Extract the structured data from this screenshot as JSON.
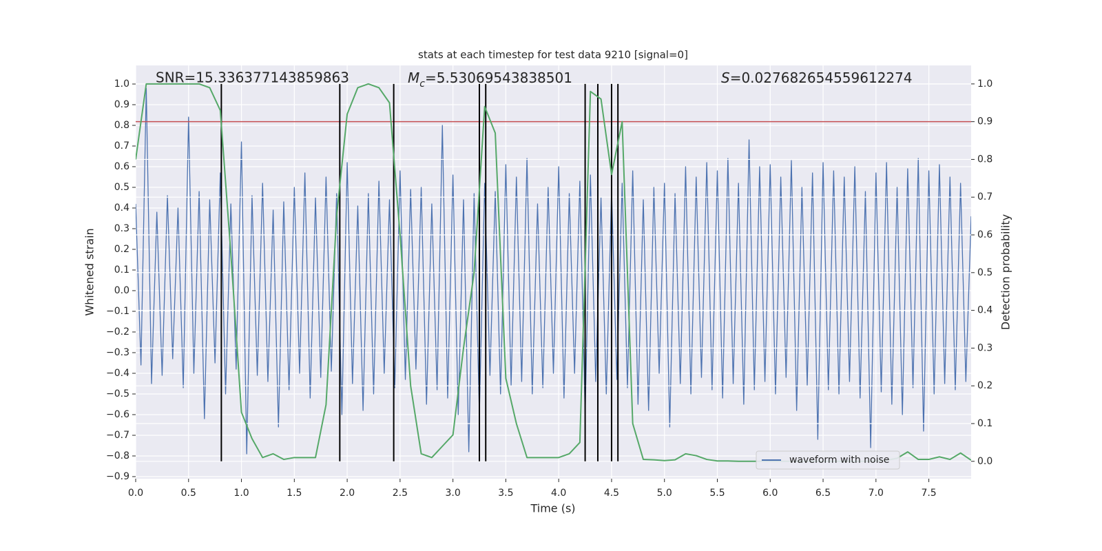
{
  "chart_data": {
    "type": "line",
    "title": "stats at each timestep for test data 9210 [signal=0]",
    "xlabel": "Time (s)",
    "ylabel": "Whitened strain",
    "y2label": "Detection probability",
    "xlim": [
      0,
      7.9
    ],
    "ylim": [
      -0.91,
      1.09
    ],
    "y2lim": [
      -0.046,
      1.049
    ],
    "xticks": [
      {
        "value": 0,
        "label": "0.0"
      },
      0.5,
      {
        "value": 1,
        "label": "1.0"
      },
      1.5,
      {
        "value": 2,
        "label": "2.0"
      },
      2.5,
      {
        "value": 3,
        "label": "3.0"
      },
      3.5,
      {
        "value": 4,
        "label": "4.0"
      },
      4.5,
      {
        "value": 5,
        "label": "5.0"
      },
      5.5,
      {
        "value": 6,
        "label": "6.0"
      },
      6.5,
      {
        "value": 7,
        "label": "7.0"
      },
      7.5
    ],
    "yticks": [
      {
        "value": -0.9,
        "label": "−0.9"
      },
      {
        "value": -0.8,
        "label": "−0.8"
      },
      {
        "value": -0.7,
        "label": "−0.7"
      },
      {
        "value": -0.6,
        "label": "−0.6"
      },
      {
        "value": -0.5,
        "label": "−0.5"
      },
      {
        "value": -0.4,
        "label": "−0.4"
      },
      {
        "value": -0.3,
        "label": "−0.3"
      },
      {
        "value": -0.2,
        "label": "−0.2"
      },
      {
        "value": -0.1,
        "label": "−0.1"
      },
      {
        "value": 0,
        "label": "0.0"
      },
      0.1,
      0.2,
      0.3,
      0.4,
      0.5,
      0.6,
      0.7,
      0.8,
      0.9,
      {
        "value": 1,
        "label": "1.0"
      }
    ],
    "y2ticks": [
      {
        "value": 0,
        "label": "0.0"
      },
      0.1,
      0.2,
      0.3,
      0.4,
      0.5,
      0.6,
      0.7,
      0.8,
      0.9,
      {
        "value": 1,
        "label": "1.0"
      }
    ],
    "grid": true,
    "legend": "best",
    "series": [
      {
        "name": "waveform with noise",
        "color": "#4c72b0",
        "x": [
          0,
          0.05,
          0.1,
          0.15,
          0.2,
          0.25,
          0.3,
          0.35,
          0.4,
          0.45,
          0.5,
          0.55,
          0.6,
          0.65,
          0.7,
          0.75,
          0.8,
          0.85,
          0.9,
          0.95,
          1,
          1.05,
          1.1,
          1.15,
          1.2,
          1.25,
          1.3,
          1.35,
          1.4,
          1.45,
          1.5,
          1.55,
          1.6,
          1.65,
          1.7,
          1.75,
          1.8,
          1.85,
          1.9,
          1.95,
          2,
          2.05,
          2.1,
          2.15,
          2.2,
          2.25,
          2.3,
          2.35,
          2.4,
          2.45,
          2.5,
          2.55,
          2.6,
          2.65,
          2.7,
          2.75,
          2.8,
          2.85,
          2.9,
          2.95,
          3,
          3.05,
          3.1,
          3.15,
          3.2,
          3.25,
          3.3,
          3.35,
          3.4,
          3.45,
          3.5,
          3.55,
          3.6,
          3.65,
          3.7,
          3.75,
          3.8,
          3.85,
          3.9,
          3.95,
          4,
          4.05,
          4.1,
          4.15,
          4.2,
          4.25,
          4.3,
          4.35,
          4.4,
          4.45,
          4.5,
          4.55,
          4.6,
          4.65,
          4.7,
          4.75,
          4.8,
          4.85,
          4.9,
          4.95,
          5,
          5.05,
          5.1,
          5.15,
          5.2,
          5.25,
          5.3,
          5.35,
          5.4,
          5.45,
          5.5,
          5.55,
          5.6,
          5.65,
          5.7,
          5.75,
          5.8,
          5.85,
          5.9,
          5.95,
          6,
          6.05,
          6.1,
          6.15,
          6.2,
          6.25,
          6.3,
          6.35,
          6.4,
          6.45,
          6.5,
          6.55,
          6.6,
          6.65,
          6.7,
          6.75,
          6.8,
          6.85,
          6.9,
          6.95,
          7,
          7.05,
          7.1,
          7.15,
          7.2,
          7.25,
          7.3,
          7.35,
          7.4,
          7.45,
          7.5,
          7.55,
          7.6,
          7.65,
          7.7,
          7.75,
          7.8,
          7.85,
          7.9
        ],
        "values": [
          0.42,
          -0.36,
          0.98,
          -0.45,
          0.38,
          -0.41,
          0.46,
          -0.33,
          0.4,
          -0.47,
          0.84,
          -0.4,
          0.48,
          -0.62,
          0.44,
          -0.35,
          0.57,
          -0.5,
          0.42,
          -0.38,
          0.72,
          -0.79,
          0.46,
          -0.41,
          0.52,
          -0.44,
          0.39,
          -0.66,
          0.43,
          -0.48,
          0.5,
          -0.4,
          0.57,
          -0.52,
          0.45,
          -0.42,
          0.55,
          -0.39,
          0.47,
          -0.6,
          0.62,
          -0.45,
          0.41,
          -0.58,
          0.47,
          -0.5,
          0.53,
          -0.4,
          0.44,
          -0.47,
          0.58,
          -0.43,
          0.49,
          -0.38,
          0.5,
          -0.55,
          0.42,
          -0.48,
          0.8,
          -0.52,
          0.56,
          -0.6,
          0.44,
          -0.78,
          0.47,
          -0.6,
          0.52,
          -0.41,
          0.48,
          -0.5,
          0.61,
          -0.46,
          0.55,
          -0.44,
          0.64,
          -0.5,
          0.42,
          -0.47,
          0.5,
          -0.4,
          0.6,
          -0.52,
          0.47,
          -0.4,
          0.53,
          -0.6,
          0.56,
          -0.44,
          0.45,
          -0.5,
          0.49,
          -0.43,
          0.52,
          -0.47,
          0.58,
          -0.55,
          0.44,
          -0.58,
          0.5,
          -0.4,
          0.52,
          -0.66,
          0.47,
          -0.45,
          0.6,
          -0.5,
          0.55,
          -0.42,
          0.62,
          -0.48,
          0.58,
          -0.52,
          0.64,
          -0.45,
          0.52,
          -0.55,
          0.73,
          -0.48,
          0.6,
          -0.44,
          0.61,
          -0.5,
          0.55,
          -0.42,
          0.63,
          -0.58,
          0.5,
          -0.46,
          0.57,
          -0.72,
          0.62,
          -0.48,
          0.58,
          -0.5,
          0.55,
          -0.44,
          0.6,
          -0.52,
          0.48,
          -0.76,
          0.57,
          -0.49,
          0.62,
          -0.55,
          0.5,
          -0.6,
          0.59,
          -0.47,
          0.64,
          -0.68,
          0.58,
          -0.5,
          0.61,
          -0.45,
          0.55,
          -0.48,
          0.52,
          -0.44,
          0.36
        ]
      },
      {
        "color": "#55a868",
        "axis": "y2",
        "x": [
          0,
          0.1,
          0.2,
          0.3,
          0.4,
          0.5,
          0.6,
          0.7,
          0.8,
          0.9,
          1,
          1.1,
          1.2,
          1.3,
          1.4,
          1.5,
          1.6,
          1.7,
          1.8,
          1.9,
          2,
          2.1,
          2.2,
          2.3,
          2.4,
          2.5,
          2.6,
          2.7,
          2.8,
          2.9,
          3,
          3.1,
          3.2,
          3.3,
          3.4,
          3.5,
          3.6,
          3.7,
          3.8,
          3.9,
          4,
          4.1,
          4.2,
          4.3,
          4.4,
          4.5,
          4.6,
          4.7,
          4.8,
          4.9,
          5,
          5.1,
          5.2,
          5.3,
          5.4,
          5.5,
          5.6,
          5.7,
          5.8,
          5.9,
          6,
          6.1,
          6.2,
          6.3,
          6.4,
          6.5,
          6.6,
          6.7,
          6.8,
          6.9,
          7,
          7.1,
          7.2,
          7.3,
          7.4,
          7.5,
          7.6,
          7.7,
          7.8,
          7.9
        ],
        "values": [
          0.8,
          1.0,
          1.0,
          1.0,
          1.0,
          1.0,
          1.0,
          0.99,
          0.93,
          0.55,
          0.13,
          0.06,
          0.01,
          0.02,
          0.005,
          0.01,
          0.01,
          0.01,
          0.15,
          0.65,
          0.92,
          0.99,
          1.0,
          0.99,
          0.95,
          0.6,
          0.2,
          0.02,
          0.01,
          0.04,
          0.07,
          0.3,
          0.5,
          0.94,
          0.87,
          0.22,
          0.1,
          0.01,
          0.01,
          0.01,
          0.01,
          0.02,
          0.05,
          0.98,
          0.96,
          0.76,
          0.9,
          0.1,
          0.005,
          0.004,
          0.002,
          0.004,
          0.02,
          0.015,
          0.005,
          0.001,
          0.001,
          0,
          0,
          0,
          0,
          0,
          0,
          0,
          0,
          0,
          0,
          0,
          0,
          0,
          0.001,
          0.003,
          0.008,
          0.025,
          0.005,
          0.005,
          0.012,
          0.005,
          0.022,
          0.003
        ]
      }
    ],
    "vlines": {
      "color": "#000000",
      "axis": "y2",
      "ymin": 0,
      "ymax": 1,
      "values": [
        0.81,
        1.93,
        2.44,
        3.25,
        3.31,
        4.25,
        4.37,
        4.5,
        4.56
      ]
    },
    "hline": {
      "color": "#c44e52",
      "axis": "y2",
      "value": 0.9
    },
    "annotations": [
      {
        "text": "SNR=15.336377143859863"
      },
      {
        "symbol": "M",
        "subscript": "c",
        "text": "=5.53069543838501"
      },
      {
        "symbol": "S",
        "text": "=0.027682654559612274"
      }
    ]
  }
}
